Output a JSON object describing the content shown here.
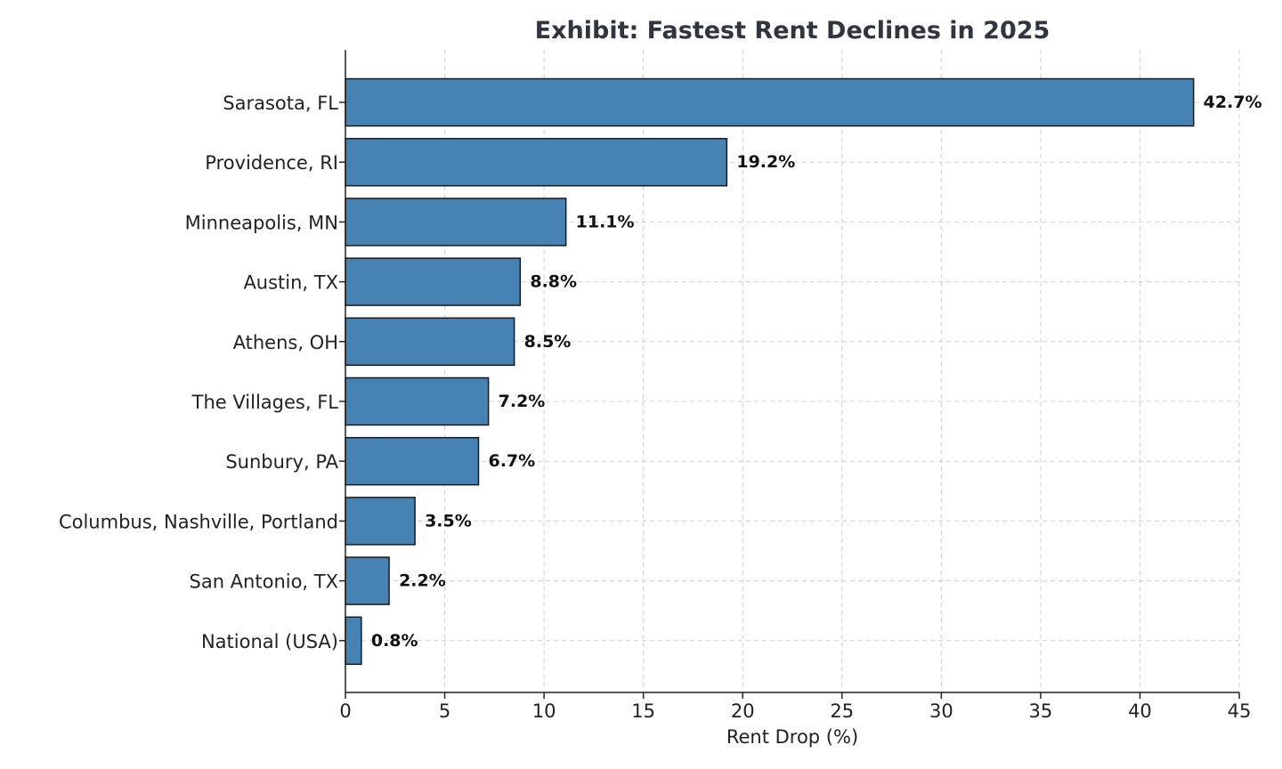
{
  "chart_data": {
    "type": "bar",
    "orientation": "horizontal",
    "title": "Exhibit: Fastest Rent Declines in 2025",
    "xlabel": "Rent Drop (%)",
    "ylabel": "",
    "xlim": [
      0,
      45
    ],
    "xticks": [
      0,
      5,
      10,
      15,
      20,
      25,
      30,
      35,
      40,
      45
    ],
    "grid": true,
    "bar_color": "#4682b4",
    "categories": [
      "Sarasota, FL",
      "Providence, RI",
      "Minneapolis, MN",
      "Austin, TX",
      "Athens, OH",
      "The Villages, FL",
      "Sunbury, PA",
      "Columbus, Nashville, Portland",
      "San Antonio, TX",
      "National (USA)"
    ],
    "values": [
      42.7,
      19.2,
      11.1,
      8.8,
      8.5,
      7.2,
      6.7,
      3.5,
      2.2,
      0.8
    ],
    "data_labels": [
      "42.7%",
      "19.2%",
      "11.1%",
      "8.8%",
      "8.5%",
      "7.2%",
      "6.7%",
      "3.5%",
      "2.2%",
      "0.8%"
    ]
  }
}
